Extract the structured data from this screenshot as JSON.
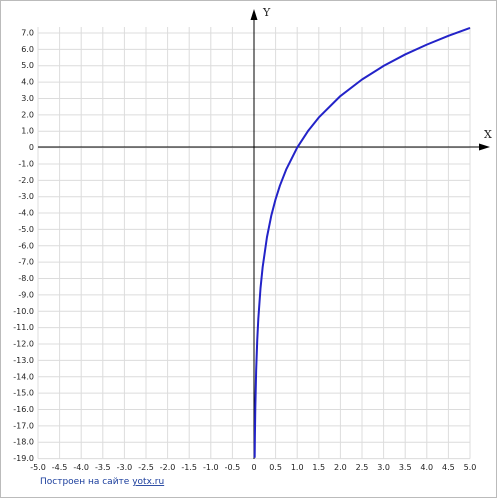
{
  "chart_data": {
    "type": "line",
    "x_label": "X",
    "y_label": "Y",
    "credit": {
      "text": "Построен на сайте",
      "link": "yotx.ru"
    },
    "xlim": [
      -5,
      5
    ],
    "ylim": [
      -19,
      7
    ],
    "grid": true,
    "xticks": [
      {
        "value": -5,
        "label": "-5.0"
      },
      {
        "value": -4.5,
        "label": "-4.5"
      },
      {
        "value": -4,
        "label": "-4.0"
      },
      {
        "value": -3.5,
        "label": "-3.5"
      },
      {
        "value": -3,
        "label": "-3.0"
      },
      {
        "value": -2.5,
        "label": "-2.5"
      },
      {
        "value": -2,
        "label": "-2.0"
      },
      {
        "value": -1.5,
        "label": "-1.5"
      },
      {
        "value": -1,
        "label": "-1.0"
      },
      {
        "value": -0.5,
        "label": "-0.5"
      },
      0,
      0.5,
      {
        "value": 1,
        "label": "1.0"
      },
      1.5,
      {
        "value": 2,
        "label": "2.0"
      },
      2.5,
      {
        "value": 3,
        "label": "3.0"
      },
      3.5,
      {
        "value": 4,
        "label": "4.0"
      },
      4.5,
      {
        "value": 5,
        "label": "5.0"
      }
    ],
    "yticks": [
      {
        "value": 7,
        "label": "7.0"
      },
      {
        "value": 6,
        "label": "6.0"
      },
      {
        "value": 5,
        "label": "5.0"
      },
      {
        "value": 4,
        "label": "4.0"
      },
      {
        "value": 3,
        "label": "3.0"
      },
      {
        "value": 2,
        "label": "2.0"
      },
      {
        "value": 1,
        "label": "1.0"
      },
      0,
      {
        "value": -1,
        "label": "-1.0"
      },
      {
        "value": -2,
        "label": "-2.0"
      },
      {
        "value": -3,
        "label": "-3.0"
      },
      {
        "value": -4,
        "label": "-4.0"
      },
      {
        "value": -5,
        "label": "-5.0"
      },
      {
        "value": -6,
        "label": "-6.0"
      },
      {
        "value": -7,
        "label": "-7.0"
      },
      {
        "value": -8,
        "label": "-8.0"
      },
      {
        "value": -9,
        "label": "-9.0"
      },
      {
        "value": -10,
        "label": "-10.0"
      },
      {
        "value": -11,
        "label": "-11.0"
      },
      {
        "value": -12,
        "label": "-12.0"
      },
      {
        "value": -13,
        "label": "-13.0"
      },
      {
        "value": -14,
        "label": "-14.0"
      },
      {
        "value": -15,
        "label": "-15.0"
      },
      {
        "value": -16,
        "label": "-16.0"
      },
      {
        "value": -17,
        "label": "-17.0"
      },
      {
        "value": -18,
        "label": "-18.0"
      },
      {
        "value": -19,
        "label": "-19.0"
      }
    ],
    "x": [
      0.0154,
      0.02,
      0.03,
      0.05,
      0.075,
      0.1,
      0.15,
      0.2,
      0.3,
      0.4,
      0.5,
      0.6,
      0.75,
      1,
      1.25,
      1.5,
      2,
      2.5,
      3,
      3.5,
      4,
      4.5,
      5
    ],
    "series": [
      {
        "color": "#2323c8",
        "values": [
          -18.95,
          -17.76,
          -15.92,
          -13.6,
          -11.76,
          -10.45,
          -8.61,
          -7.31,
          -5.47,
          -4.16,
          -3.15,
          -2.32,
          -1.31,
          0,
          1.01,
          1.84,
          3.15,
          4.16,
          4.99,
          5.69,
          6.29,
          6.83,
          7.31
        ]
      }
    ]
  }
}
